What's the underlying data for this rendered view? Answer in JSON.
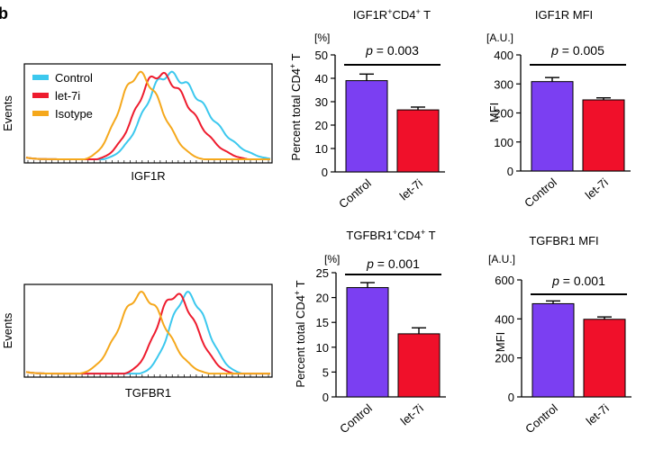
{
  "panel_letter": "b",
  "colors": {
    "control": "#3cc8ee",
    "let7i": "#ee1c2e",
    "isotype": "#f5a81c",
    "bar_control": "#7b3ff2",
    "bar_let7i": "#f0102a"
  },
  "chart_data": [
    {
      "type": "line",
      "kind": "histogram",
      "xlabel": "IGF1R",
      "ylabel": "Events",
      "legend": {
        "position": "top-left",
        "items": [
          "Control",
          "let-7i",
          "Isotype"
        ]
      },
      "series": [
        {
          "name": "Control",
          "color": "#3cc8ee",
          "peak_x": 0.58,
          "spread": 0.095,
          "right_shoulder": 0.16
        },
        {
          "name": "let-7i",
          "color": "#ee1c2e",
          "peak_x": 0.54,
          "spread": 0.09,
          "right_shoulder": 0.12
        },
        {
          "name": "Isotype",
          "color": "#f5a81c",
          "peak_x": 0.46,
          "spread": 0.08,
          "right_shoulder": 0.05
        }
      ]
    },
    {
      "type": "bar",
      "title": "IGF1R",
      "title_sup1": "+",
      "title_mid": "CD4",
      "title_sup2": "+",
      "title_end": " T",
      "unit": "[%]",
      "ylabel": "Percent total CD4",
      "ylabel_sup": "+",
      "ylabel_end": " T",
      "categories": [
        "Control",
        "let-7i"
      ],
      "values": [
        39,
        26.5
      ],
      "errors": [
        2.8,
        1.2
      ],
      "ylim": [
        0,
        50
      ],
      "yticks": [
        "0",
        "10",
        "20",
        "30",
        "40",
        "50"
      ],
      "p_label": "p",
      "p_value": " = 0.003"
    },
    {
      "type": "bar",
      "title": "IGF1R MFI",
      "unit": "[A.U.]",
      "ylabel": "MFI",
      "categories": [
        "Control",
        "let-7i"
      ],
      "values": [
        308,
        245
      ],
      "errors": [
        14,
        7
      ],
      "ylim": [
        0,
        400
      ],
      "yticks": [
        "0",
        "100",
        "200",
        "300",
        "400"
      ],
      "p_label": "p",
      "p_value": " = 0.005"
    },
    {
      "type": "line",
      "kind": "histogram",
      "xlabel": "TGFBR1",
      "ylabel": "Events",
      "series": [
        {
          "name": "Control",
          "color": "#3cc8ee",
          "peak_x": 0.66,
          "spread": 0.07,
          "right_shoulder": 0.04
        },
        {
          "name": "let-7i",
          "color": "#ee1c2e",
          "peak_x": 0.61,
          "spread": 0.075,
          "right_shoulder": 0.04
        },
        {
          "name": "Isotype",
          "color": "#f5a81c",
          "peak_x": 0.47,
          "spread": 0.09,
          "right_shoulder": 0.03
        }
      ]
    },
    {
      "type": "bar",
      "title": "TGFBR1",
      "title_sup1": "+",
      "title_mid": "CD4",
      "title_sup2": "+",
      "title_end": " T",
      "unit": "[%]",
      "ylabel": "Percent total CD4",
      "ylabel_sup": "+",
      "ylabel_end": " T",
      "categories": [
        "Control",
        "let-7i"
      ],
      "values": [
        22,
        12.7
      ],
      "errors": [
        1.0,
        1.2
      ],
      "ylim": [
        0,
        25
      ],
      "yticks": [
        "0",
        "5",
        "10",
        "15",
        "20",
        "25"
      ],
      "p_label": "p",
      "p_value": " = 0.001"
    },
    {
      "type": "bar",
      "title": "TGFBR1 MFI",
      "unit": "[A.U.]",
      "ylabel": "MFI",
      "categories": [
        "Control",
        "let-7i"
      ],
      "values": [
        478,
        398
      ],
      "errors": [
        14,
        12
      ],
      "ylim": [
        0,
        600
      ],
      "yticks": [
        "0",
        "200",
        "400",
        "600"
      ],
      "p_label": "p",
      "p_value": " = 0.001"
    }
  ]
}
